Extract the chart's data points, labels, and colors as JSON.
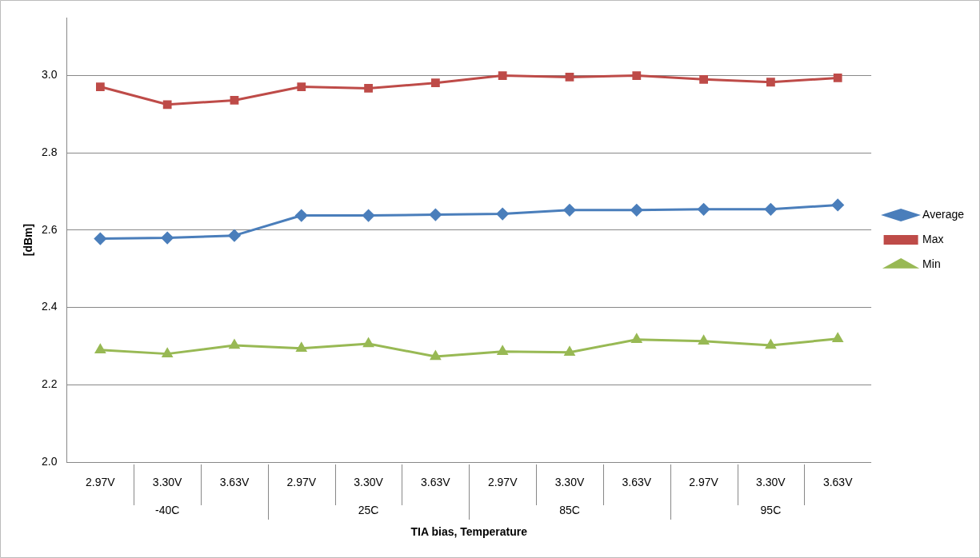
{
  "chart_data": {
    "type": "line",
    "xlabel": "TIA bias, Temperature",
    "ylabel": "[dBm]",
    "categories": [
      "2.97V",
      "3.30V",
      "3.63V",
      "2.97V",
      "3.30V",
      "3.63V",
      "2.97V",
      "3.30V",
      "3.63V",
      "2.97V",
      "3.30V",
      "3.63V"
    ],
    "annotations": [
      "-40C",
      "25C",
      "85C",
      "95C"
    ],
    "series": [
      {
        "name": "Average",
        "color": "#4a7ebb",
        "marker": "diamond",
        "values": [
          2.578,
          2.58,
          2.586,
          2.638,
          2.638,
          2.64,
          2.642,
          2.652,
          2.652,
          2.654,
          2.654,
          2.665
        ]
      },
      {
        "name": "Max",
        "color": "#be4b48",
        "marker": "square",
        "values": [
          2.971,
          2.925,
          2.936,
          2.971,
          2.967,
          2.981,
          3.0,
          2.996,
          3.0,
          2.99,
          2.983,
          2.994
        ]
      },
      {
        "name": "Min",
        "color": "#98b954",
        "marker": "triangle",
        "values": [
          2.29,
          2.28,
          2.302,
          2.294,
          2.306,
          2.273,
          2.286,
          2.284,
          2.317,
          2.313,
          2.302,
          2.319
        ]
      }
    ],
    "ylim": [
      2.0,
      3.15
    ],
    "yticks": [
      {
        "value": 2.0,
        "label": "2.0"
      },
      {
        "value": 2.2,
        "label": "2.2"
      },
      {
        "value": 2.4,
        "label": "2.4"
      },
      {
        "value": 2.6,
        "label": "2.6"
      },
      {
        "value": 2.8,
        "label": "2.8"
      },
      {
        "value": 3.0,
        "label": "3.0"
      }
    ],
    "grid": "y",
    "legend": "right",
    "line_style": "solid"
  }
}
